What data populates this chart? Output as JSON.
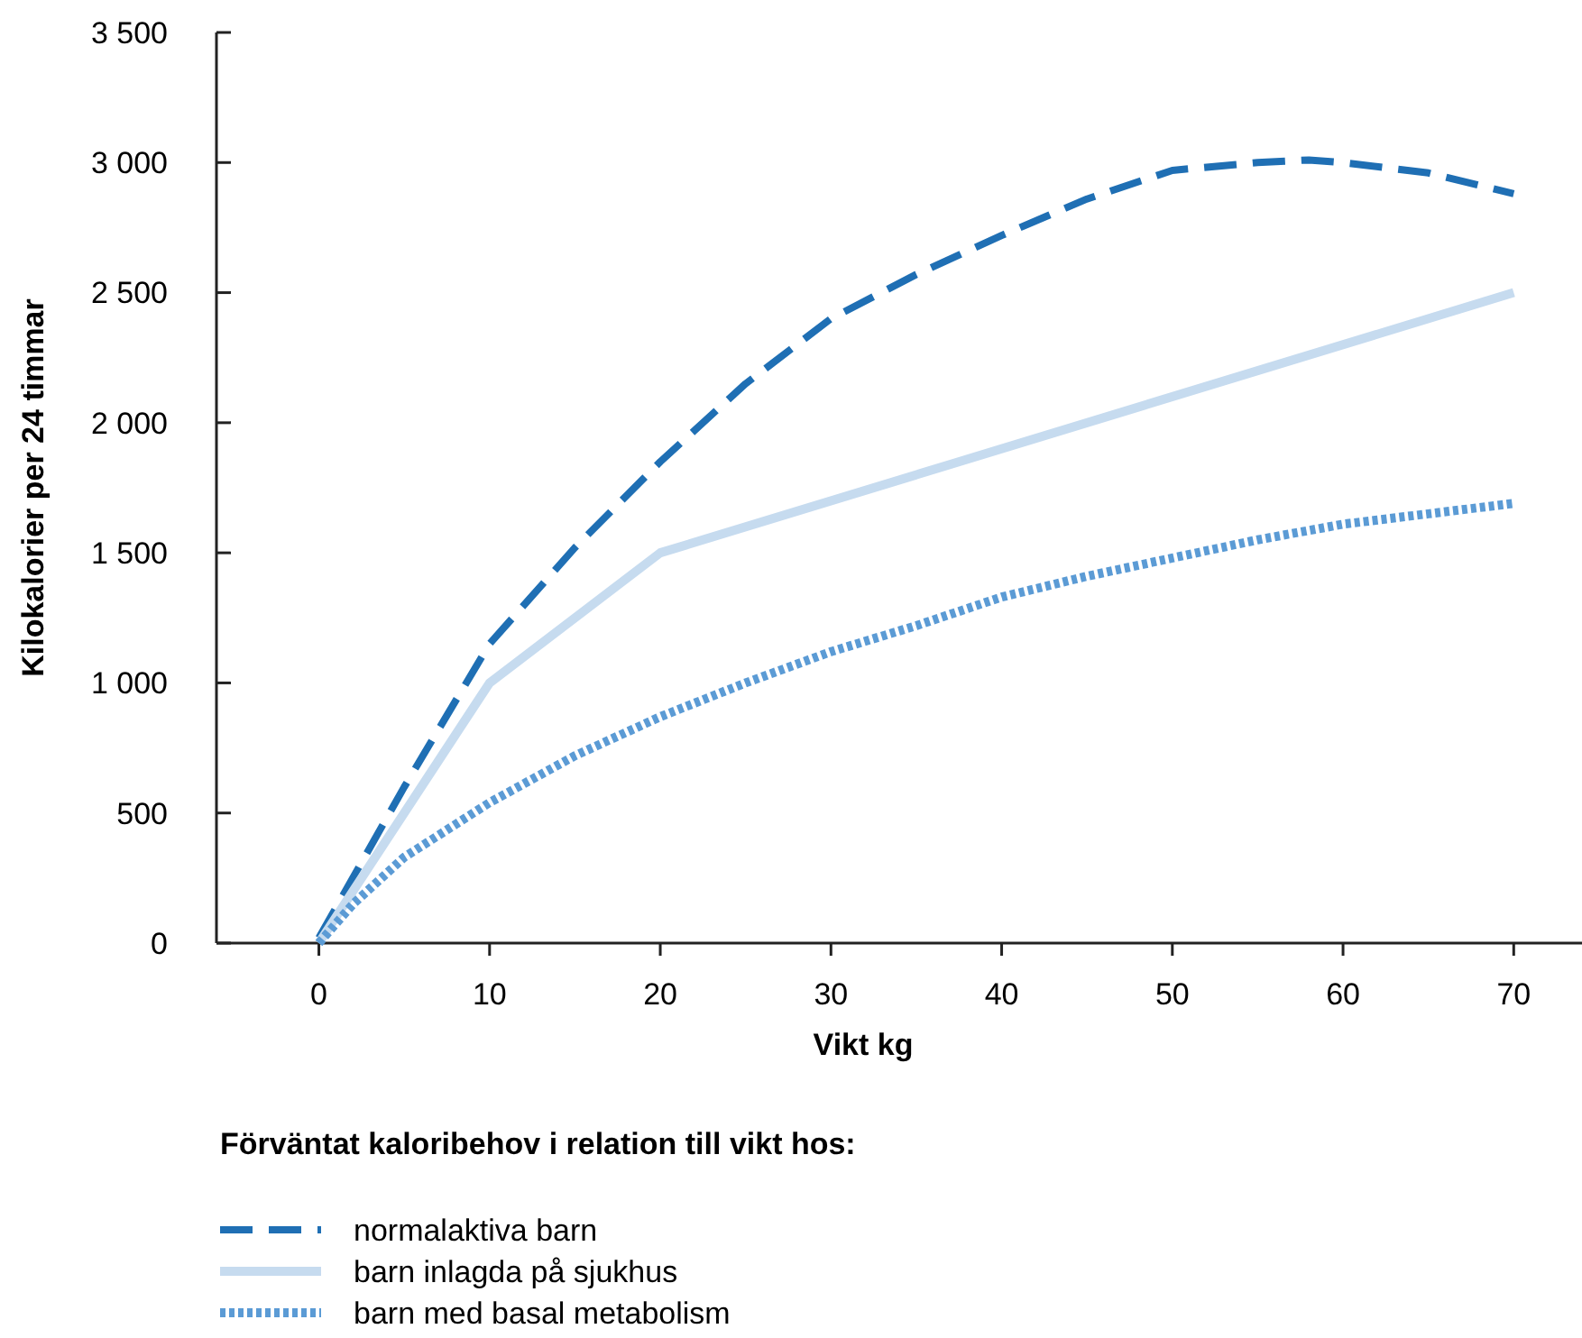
{
  "chart_data": {
    "type": "line",
    "xlabel": "Vikt kg",
    "ylabel": "Kilokalorier per 24 timmar",
    "legend_title": "Förväntat kaloribehov i relation till vikt hos:",
    "legend": "bottom",
    "grid": false,
    "marker": "none",
    "xlim": [
      -6,
      74
    ],
    "xticks": [
      0,
      10,
      20,
      30,
      40,
      50,
      60,
      70
    ],
    "ylim": [
      0,
      3500
    ],
    "yticks": [
      {
        "value": 0,
        "label": "0"
      },
      {
        "value": 500,
        "label": "500"
      },
      {
        "value": 1000,
        "label": "1 000"
      },
      {
        "value": 1500,
        "label": "1 500"
      },
      {
        "value": 2000,
        "label": "2 000"
      },
      {
        "value": 2500,
        "label": "2 500"
      },
      {
        "value": 3000,
        "label": "3 000"
      },
      {
        "value": 3500,
        "label": "3 500"
      }
    ],
    "series": [
      {
        "name": "normalaktiva barn",
        "color": "#1f6fb4",
        "line_style": "dashed",
        "x": [
          0,
          5,
          10,
          15,
          20,
          25,
          30,
          35,
          40,
          45,
          50,
          55,
          58,
          60,
          65,
          70
        ],
        "values": [
          20,
          600,
          1150,
          1520,
          1850,
          2150,
          2400,
          2570,
          2720,
          2860,
          2970,
          3000,
          3010,
          3000,
          2960,
          2880
        ]
      },
      {
        "name": "barn inlagda på sjukhus",
        "color": "#c6dbef",
        "line_style": "solid",
        "x": [
          0,
          10,
          20,
          70
        ],
        "values": [
          0,
          1000,
          1500,
          2500
        ]
      },
      {
        "name": "barn med basal metabolism",
        "color": "#5b9bd5",
        "line_style": "dotted",
        "x": [
          0,
          2,
          5,
          10,
          15,
          20,
          25,
          30,
          35,
          40,
          45,
          50,
          55,
          60,
          65,
          70
        ],
        "values": [
          0,
          150,
          330,
          540,
          720,
          870,
          1000,
          1120,
          1220,
          1330,
          1410,
          1480,
          1550,
          1610,
          1650,
          1690
        ]
      }
    ]
  }
}
